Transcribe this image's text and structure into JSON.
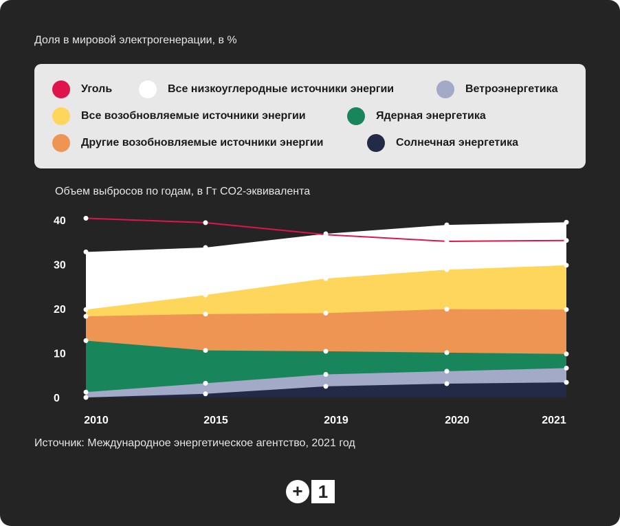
{
  "subtitle": "Доля в мировой электрогенерации, в %",
  "legend": [
    {
      "label": "Уголь",
      "color": "#e0144c"
    },
    {
      "label": "Все низкоуглеродные источники энергии",
      "color": "#ffffff"
    },
    {
      "label": "Ветроэнергетика",
      "color": "#a2aac8"
    },
    {
      "label": "Все возобновляемые источники энергии",
      "color": "#ffd65c"
    },
    {
      "label": "Ядерная энергетика",
      "color": "#19855a"
    },
    {
      "label": "Другие возобновляемые источники энергии",
      "color": "#ef9554"
    },
    {
      "label": "Солнечная энергетика",
      "color": "#232a47"
    }
  ],
  "source": "Источник: Международное энергетическое агентство, 2021 год",
  "logo": {
    "plus": "+",
    "one": "1"
  },
  "chart_data": {
    "type": "area",
    "title": "Объем выбросов по годам, в Гт CO2-эквивалента",
    "categories": [
      "2010",
      "2015",
      "2019",
      "2020",
      "2021"
    ],
    "yticks": [
      "0",
      "10",
      "20",
      "30",
      "40"
    ],
    "ylim": [
      0,
      40
    ],
    "series": [
      {
        "name": "Все низкоуглеродные источники энергии",
        "color": "#ffffff",
        "values": [
          32.8,
          33.8,
          36.9,
          38.9,
          39.5
        ]
      },
      {
        "name": "Все возобновляемые источники энергии",
        "color": "#ffd65c",
        "values": [
          19.8,
          23.1,
          26.8,
          28.8,
          29.8
        ]
      },
      {
        "name": "Другие возобновляемые источники энергии",
        "color": "#ef9554",
        "values": [
          18.3,
          18.8,
          19.0,
          19.9,
          19.8
        ]
      },
      {
        "name": "Ядерная энергетика",
        "color": "#19855a",
        "values": [
          12.8,
          10.6,
          10.4,
          10.1,
          9.8
        ]
      },
      {
        "name": "Ветроэнергетика",
        "color": "#a2aac8",
        "values": [
          1.2,
          3.2,
          5.2,
          5.9,
          6.6
        ]
      },
      {
        "name": "Солнечная энергетика",
        "color": "#232a47",
        "values": [
          0.0,
          0.8,
          2.5,
          3.1,
          3.4
        ]
      },
      {
        "name": "Уголь",
        "color": "#e0144c",
        "type": "line",
        "values": [
          40.4,
          39.4,
          36.7,
          35.2,
          35.4
        ]
      }
    ]
  }
}
